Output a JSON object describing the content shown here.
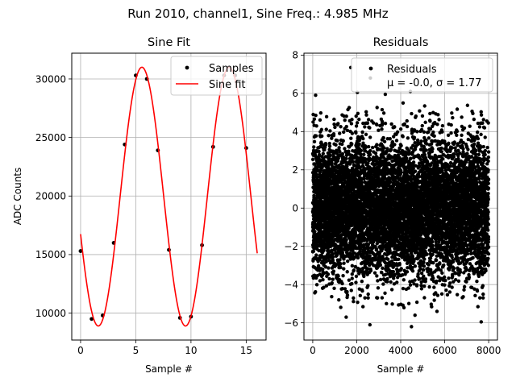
{
  "suptitle": "Run 2010, channel1, Sine Freq.: 4.985 MHz",
  "chart_data": [
    {
      "type": "scatter",
      "title": "Sine Fit",
      "xlabel": "Sample #",
      "ylabel": "ADC Counts",
      "xlim": [
        -0.8,
        16.8
      ],
      "ylim": [
        7700,
        32200
      ],
      "xticks": [
        0,
        5,
        10,
        15
      ],
      "xtick_labels": [
        "0",
        "5",
        "10",
        "15"
      ],
      "yticks": [
        10000,
        15000,
        20000,
        25000,
        30000
      ],
      "ytick_labels": [
        "10000",
        "15000",
        "20000",
        "25000",
        "30000"
      ],
      "grid": true,
      "legend": {
        "placement": "upper-right",
        "entries": [
          "Samples",
          "Sine fit"
        ]
      },
      "series": [
        {
          "name": "Samples",
          "kind": "points",
          "color": "#000000",
          "x": [
            0,
            1,
            2,
            3,
            4,
            5,
            6,
            7,
            8,
            9,
            10,
            11,
            12,
            13,
            14,
            15
          ],
          "y": [
            15300,
            9500,
            9800,
            16000,
            24400,
            30300,
            30000,
            23900,
            15400,
            9600,
            9700,
            15800,
            24200,
            30300,
            30300,
            24100
          ]
        },
        {
          "name": "Sine fit",
          "kind": "line",
          "color": "#ff0000",
          "x_range": [
            0,
            16
          ],
          "model": {
            "offset": 19950,
            "amplitude": 11050,
            "period": 7.9,
            "phase_sample": 3.58
          }
        }
      ]
    },
    {
      "type": "scatter",
      "title": "Residuals",
      "xlabel": "Sample #",
      "ylabel": "",
      "xlim": [
        -400,
        8400
      ],
      "ylim": [
        -6.9,
        8.1
      ],
      "xticks": [
        0,
        2000,
        4000,
        6000,
        8000
      ],
      "xtick_labels": [
        "0",
        "2000",
        "4000",
        "6000",
        "8000"
      ],
      "yticks": [
        -6,
        -4,
        -2,
        0,
        2,
        4,
        6,
        8
      ],
      "ytick_labels": [
        "−6",
        "−4",
        "−2",
        "0",
        "2",
        "4",
        "6",
        "8"
      ],
      "grid": true,
      "legend": {
        "placement": "upper-right",
        "entries": [
          "Residuals",
          "μ = -0.0, σ = 1.77"
        ]
      },
      "series": [
        {
          "name": "Residuals",
          "kind": "points",
          "color": "#000000",
          "n_points": 8000,
          "mean": 0.0,
          "std": 1.77,
          "outliers": [
            [
              1730,
              7.35
            ],
            [
              2620,
              6.8
            ],
            [
              2030,
              6.05
            ],
            [
              3300,
              5.95
            ],
            [
              4440,
              6.1
            ],
            [
              130,
              5.9
            ],
            [
              2600,
              -6.1
            ],
            [
              4490,
              -6.2
            ],
            [
              7660,
              -5.95
            ],
            [
              1520,
              -5.7
            ],
            [
              4650,
              -5.6
            ],
            [
              5650,
              -5.4
            ]
          ]
        }
      ]
    }
  ]
}
